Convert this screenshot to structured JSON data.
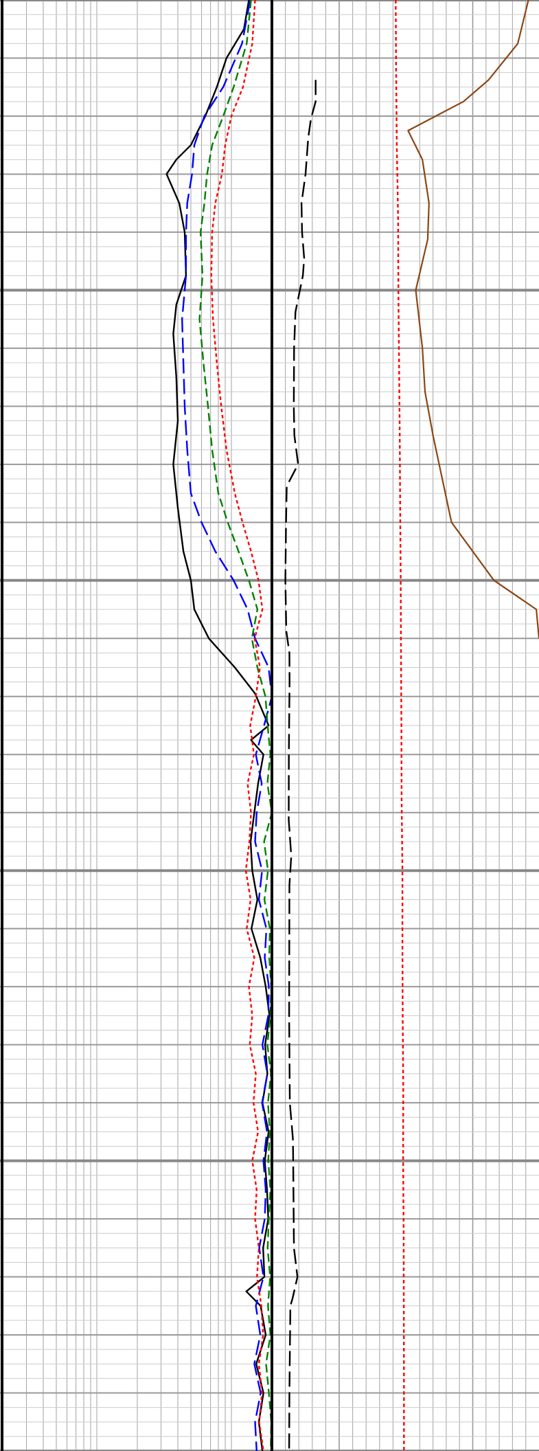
{
  "chart_data": {
    "type": "line",
    "title": "",
    "depth_axis": {
      "direction": "downward",
      "labels_visible": false,
      "range": [
        0,
        1000
      ]
    },
    "tracks": [
      {
        "id": "track1",
        "scale": "log",
        "decades": 2,
        "range": [
          0.2,
          20
        ],
        "grid": true
      },
      {
        "id": "track2",
        "scale": "linear",
        "range": [
          0,
          100
        ],
        "grid": true
      },
      {
        "id": "track3",
        "scale": "linear",
        "range": [
          0,
          100
        ],
        "grid": true
      }
    ],
    "series": [
      {
        "track": "track1",
        "color": "#000000",
        "dash": "solid",
        "values": [
          [
            0,
            13.5
          ],
          [
            20,
            12.4
          ],
          [
            40,
            9.2
          ],
          [
            60,
            7.8
          ],
          [
            80,
            6.4
          ],
          [
            100,
            5.0
          ],
          [
            110,
            3.9
          ],
          [
            120,
            3.3
          ],
          [
            140,
            4.1
          ],
          [
            160,
            4.5
          ],
          [
            190,
            4.6
          ],
          [
            210,
            3.9
          ],
          [
            230,
            3.7
          ],
          [
            260,
            3.9
          ],
          [
            290,
            4.0
          ],
          [
            320,
            3.7
          ],
          [
            350,
            4.0
          ],
          [
            380,
            4.4
          ],
          [
            400,
            5.0
          ],
          [
            420,
            5.3
          ],
          [
            440,
            6.8
          ],
          [
            460,
            10.6
          ],
          [
            478,
            15.0
          ],
          [
            500,
            18.9
          ],
          [
            510,
            14.0
          ],
          [
            520,
            17.3
          ],
          [
            540,
            15.8
          ],
          [
            560,
            14.8
          ],
          [
            580,
            13.9
          ],
          [
            600,
            14.3
          ],
          [
            620,
            15.6
          ],
          [
            640,
            14.1
          ],
          [
            660,
            16.4
          ],
          [
            680,
            18.0
          ],
          [
            700,
            19.2
          ],
          [
            720,
            17.8
          ],
          [
            740,
            18.5
          ],
          [
            760,
            17.0
          ],
          [
            780,
            18.9
          ],
          [
            800,
            17.7
          ],
          [
            820,
            18.4
          ],
          [
            840,
            18.8
          ],
          [
            860,
            17.2
          ],
          [
            880,
            17.6
          ],
          [
            890,
            12.9
          ],
          [
            900,
            16.5
          ],
          [
            920,
            18.0
          ],
          [
            940,
            15.3
          ],
          [
            960,
            17.3
          ],
          [
            980,
            16.0
          ],
          [
            1000,
            17.0
          ]
        ]
      },
      {
        "track": "track1",
        "color": "#0000ff",
        "dash": "long",
        "values": [
          [
            0,
            13.8
          ],
          [
            30,
            12.0
          ],
          [
            60,
            8.7
          ],
          [
            80,
            6.3
          ],
          [
            100,
            5.3
          ],
          [
            120,
            5.1
          ],
          [
            140,
            4.7
          ],
          [
            160,
            4.6
          ],
          [
            190,
            4.6
          ],
          [
            220,
            4.3
          ],
          [
            250,
            4.4
          ],
          [
            280,
            4.5
          ],
          [
            310,
            4.7
          ],
          [
            340,
            5.0
          ],
          [
            360,
            6.0
          ],
          [
            380,
            7.6
          ],
          [
            400,
            10.4
          ],
          [
            420,
            13.2
          ],
          [
            440,
            15.0
          ],
          [
            460,
            18.9
          ],
          [
            480,
            20.0
          ],
          [
            500,
            17.5
          ],
          [
            520,
            15.2
          ],
          [
            540,
            16.8
          ],
          [
            560,
            15.4
          ],
          [
            580,
            15.0
          ],
          [
            600,
            16.9
          ],
          [
            620,
            16.0
          ],
          [
            640,
            18.2
          ],
          [
            660,
            17.7
          ],
          [
            680,
            19.0
          ],
          [
            700,
            18.8
          ],
          [
            720,
            17.0
          ],
          [
            740,
            18.5
          ],
          [
            760,
            16.9
          ],
          [
            780,
            18.4
          ],
          [
            800,
            17.3
          ],
          [
            820,
            18.0
          ],
          [
            840,
            17.7
          ],
          [
            860,
            16.1
          ],
          [
            880,
            17.3
          ],
          [
            900,
            15.2
          ],
          [
            920,
            16.4
          ],
          [
            940,
            14.8
          ],
          [
            960,
            16.5
          ],
          [
            980,
            15.0
          ],
          [
            1000,
            15.4
          ]
        ]
      },
      {
        "track": "track1",
        "color": "#008000",
        "dash": "medium",
        "values": [
          [
            0,
            14.0
          ],
          [
            30,
            13.0
          ],
          [
            60,
            10.4
          ],
          [
            80,
            8.7
          ],
          [
            100,
            7.2
          ],
          [
            120,
            6.6
          ],
          [
            140,
            6.3
          ],
          [
            160,
            5.9
          ],
          [
            190,
            6.1
          ],
          [
            220,
            5.8
          ],
          [
            250,
            6.2
          ],
          [
            280,
            6.7
          ],
          [
            310,
            7.2
          ],
          [
            340,
            8.0
          ],
          [
            360,
            9.4
          ],
          [
            380,
            11.3
          ],
          [
            400,
            13.5
          ],
          [
            420,
            15.6
          ],
          [
            440,
            14.2
          ],
          [
            460,
            15.6
          ],
          [
            480,
            17.9
          ],
          [
            500,
            18.6
          ],
          [
            520,
            19.5
          ],
          [
            540,
            18.5
          ],
          [
            560,
            20.0
          ],
          [
            580,
            17.5
          ],
          [
            600,
            18.7
          ],
          [
            620,
            17.6
          ],
          [
            640,
            19.3
          ],
          [
            660,
            19.1
          ],
          [
            680,
            19.8
          ],
          [
            700,
            19.5
          ],
          [
            720,
            18.5
          ],
          [
            740,
            19.7
          ],
          [
            760,
            18.7
          ],
          [
            780,
            19.3
          ],
          [
            800,
            18.8
          ],
          [
            820,
            19.5
          ],
          [
            840,
            19.0
          ],
          [
            860,
            18.6
          ],
          [
            880,
            19.4
          ],
          [
            900,
            18.7
          ],
          [
            920,
            19.5
          ],
          [
            940,
            18.1
          ],
          [
            960,
            19.0
          ],
          [
            980,
            19.8
          ],
          [
            1000,
            19.6
          ]
        ]
      },
      {
        "track": "track1",
        "color": "#ff0000",
        "dash": "short",
        "values": [
          [
            0,
            15.0
          ],
          [
            30,
            14.3
          ],
          [
            60,
            12.2
          ],
          [
            80,
            10.0
          ],
          [
            100,
            9.0
          ],
          [
            120,
            8.5
          ],
          [
            140,
            7.6
          ],
          [
            160,
            7.2
          ],
          [
            190,
            7.1
          ],
          [
            220,
            7.3
          ],
          [
            250,
            7.8
          ],
          [
            280,
            8.4
          ],
          [
            310,
            9.2
          ],
          [
            340,
            10.6
          ],
          [
            360,
            12.1
          ],
          [
            380,
            14.0
          ],
          [
            400,
            15.9
          ],
          [
            420,
            17.0
          ],
          [
            440,
            14.9
          ],
          [
            460,
            16.3
          ],
          [
            480,
            15.2
          ],
          [
            500,
            13.8
          ],
          [
            520,
            14.7
          ],
          [
            540,
            13.2
          ],
          [
            560,
            14.0
          ],
          [
            580,
            13.6
          ],
          [
            600,
            12.8
          ],
          [
            620,
            13.9
          ],
          [
            640,
            13.0
          ],
          [
            660,
            14.8
          ],
          [
            680,
            13.5
          ],
          [
            700,
            14.3
          ],
          [
            720,
            13.7
          ],
          [
            740,
            15.2
          ],
          [
            760,
            14.6
          ],
          [
            780,
            15.8
          ],
          [
            800,
            14.3
          ],
          [
            820,
            15.4
          ],
          [
            840,
            15.0
          ],
          [
            860,
            16.0
          ],
          [
            880,
            15.5
          ],
          [
            900,
            16.7
          ],
          [
            920,
            17.2
          ],
          [
            940,
            16.0
          ],
          [
            960,
            16.9
          ],
          [
            980,
            16.1
          ],
          [
            1000,
            17.3
          ]
        ]
      },
      {
        "track": "track2",
        "color": "#000000",
        "dash": "long",
        "values": [
          [
            55,
            32.5
          ],
          [
            70,
            32.5
          ],
          [
            82,
            29.0
          ],
          [
            95,
            27.0
          ],
          [
            120,
            25.0
          ],
          [
            140,
            22.0
          ],
          [
            160,
            22.4
          ],
          [
            178,
            24.0
          ],
          [
            190,
            23.0
          ],
          [
            215,
            17.5
          ],
          [
            240,
            16.5
          ],
          [
            280,
            16.3
          ],
          [
            300,
            16.7
          ],
          [
            320,
            19.5
          ],
          [
            335,
            11.0
          ],
          [
            360,
            10.5
          ],
          [
            400,
            10.0
          ],
          [
            435,
            10.7
          ],
          [
            450,
            13.0
          ],
          [
            470,
            13.1
          ],
          [
            520,
            12.6
          ],
          [
            565,
            12.5
          ],
          [
            590,
            14.4
          ],
          [
            610,
            13.0
          ],
          [
            700,
            12.8
          ],
          [
            760,
            13.3
          ],
          [
            785,
            15.6
          ],
          [
            800,
            15.8
          ],
          [
            860,
            16.4
          ],
          [
            880,
            19.0
          ],
          [
            895,
            15.3
          ],
          [
            900,
            13.7
          ],
          [
            960,
            13.0
          ],
          [
            1000,
            12.8
          ]
        ]
      },
      {
        "track": "track2",
        "color": "#ff0000",
        "dash": "short",
        "values": [
          [
            0,
            92.0
          ],
          [
            50,
            92.3
          ],
          [
            100,
            92.8
          ],
          [
            150,
            93.8
          ],
          [
            200,
            94.0
          ],
          [
            250,
            94.5
          ],
          [
            300,
            95.0
          ],
          [
            350,
            95.3
          ],
          [
            400,
            95.7
          ],
          [
            450,
            95.9
          ],
          [
            500,
            96.2
          ],
          [
            550,
            96.4
          ],
          [
            600,
            97.0
          ],
          [
            650,
            97.0
          ],
          [
            700,
            97.2
          ],
          [
            750,
            97.6
          ],
          [
            800,
            97.5
          ],
          [
            850,
            97.9
          ],
          [
            900,
            98.0
          ],
          [
            950,
            98.1
          ],
          [
            1000,
            98.1
          ]
        ]
      },
      {
        "track": "track3",
        "color": "#8b4513",
        "dash": "solid",
        "values": [
          [
            0,
            92.0
          ],
          [
            30,
            84.0
          ],
          [
            55,
            62.0
          ],
          [
            70,
            43.0
          ],
          [
            90,
            1.2
          ],
          [
            110,
            12.0
          ],
          [
            140,
            17.0
          ],
          [
            165,
            16.0
          ],
          [
            200,
            7.0
          ],
          [
            240,
            12.0
          ],
          [
            270,
            14.0
          ],
          [
            300,
            20.0
          ],
          [
            330,
            27.0
          ],
          [
            360,
            34.0
          ],
          [
            400,
            66.0
          ],
          [
            420,
            98.0
          ],
          [
            440,
            100.0
          ]
        ]
      }
    ]
  }
}
